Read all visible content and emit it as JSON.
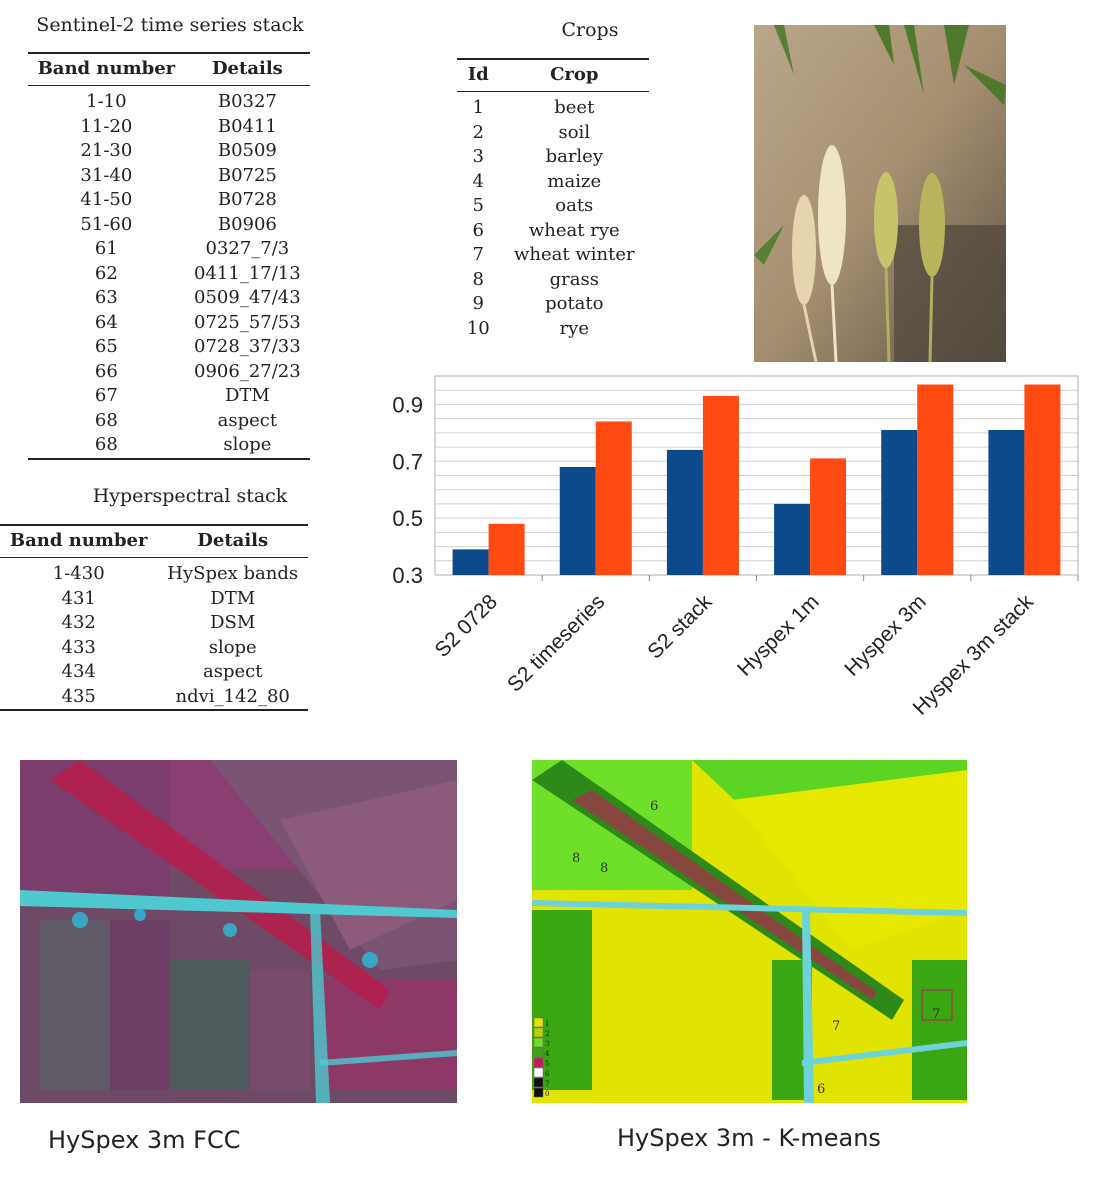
{
  "sentinel_table": {
    "caption": "Sentinel-2 time series stack",
    "headers": [
      "Band number",
      "Details"
    ],
    "rows": [
      [
        "1-10",
        "B0327"
      ],
      [
        "11-20",
        "B0411"
      ],
      [
        "21-30",
        "B0509"
      ],
      [
        "31-40",
        "B0725"
      ],
      [
        "41-50",
        "B0728"
      ],
      [
        "51-60",
        "B0906"
      ],
      [
        "61",
        "0327_7/3"
      ],
      [
        "62",
        "0411_17/13"
      ],
      [
        "63",
        "0509_47/43"
      ],
      [
        "64",
        "0725_57/53"
      ],
      [
        "65",
        "0728_37/33"
      ],
      [
        "66",
        "0906_27/23"
      ],
      [
        "67",
        "DTM"
      ],
      [
        "68",
        "aspect"
      ],
      [
        "68",
        "slope"
      ]
    ]
  },
  "hyper_table": {
    "caption": "Hyperspectral stack",
    "headers": [
      "Band number",
      "Details"
    ],
    "rows": [
      [
        "1-430",
        "HySpex bands"
      ],
      [
        "431",
        "DTM"
      ],
      [
        "432",
        "DSM"
      ],
      [
        "433",
        "slope"
      ],
      [
        "434",
        "aspect"
      ],
      [
        "435",
        "ndvi_142_80"
      ]
    ]
  },
  "crops_table": {
    "caption": "Crops",
    "headers": [
      "Id",
      "Crop"
    ],
    "rows": [
      [
        "1",
        "beet"
      ],
      [
        "2",
        "soil"
      ],
      [
        "3",
        "barley"
      ],
      [
        "4",
        "maize"
      ],
      [
        "5",
        "oats"
      ],
      [
        "6",
        "wheat rye"
      ],
      [
        "7",
        "wheat winter"
      ],
      [
        "8",
        "grass"
      ],
      [
        "9",
        "potato"
      ],
      [
        "10",
        "rye"
      ]
    ]
  },
  "chart_data": {
    "type": "bar",
    "categories": [
      "S2 0728",
      "S2 timeseries",
      "S2 stack",
      "Hyspex 1m",
      "Hyspex 3m",
      "Hyspex 3m stack"
    ],
    "series": [
      {
        "values": [
          0.39,
          0.68,
          0.74,
          0.55,
          0.81,
          0.81
        ],
        "color": "#0d4a8c"
      },
      {
        "values": [
          0.48,
          0.84,
          0.93,
          0.71,
          0.97,
          0.97
        ],
        "color": "#ff4a12"
      }
    ],
    "ylim": [
      0.3,
      1.0
    ],
    "yticks": [
      "0.3",
      "0.5",
      "0.7",
      "0.9"
    ],
    "grid": true,
    "legend": "none"
  },
  "images": {
    "fcc_caption": "HySpex 3m FCC",
    "kmeans_caption": "HySpex 3m - K-means",
    "kmeans_labels": [
      "6",
      "8",
      "8",
      "7",
      "7",
      "6"
    ],
    "kmeans_legend": [
      "1",
      "2",
      "3",
      "4",
      "5",
      "6",
      "7",
      "0"
    ]
  }
}
